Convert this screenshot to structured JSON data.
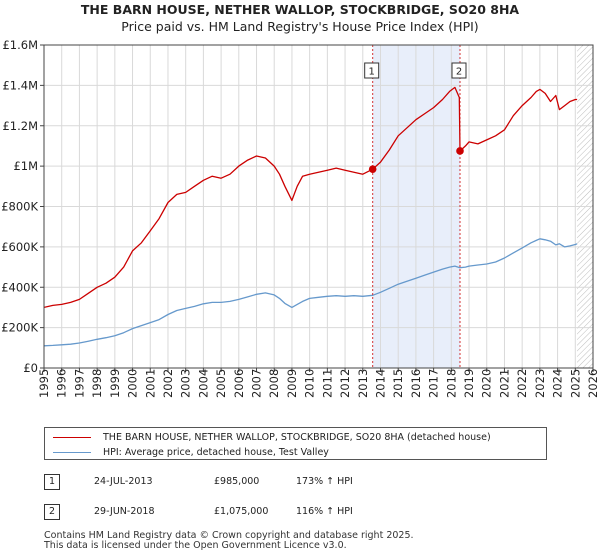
{
  "chart_data": {
    "type": "line",
    "title": "THE BARN HOUSE, NETHER WALLOP, STOCKBRIDGE, SO20 8HA",
    "subtitle": "Price paid vs. HM Land Registry's House Price Index (HPI)",
    "xlabel": "",
    "ylabel": "",
    "xlim": [
      1995,
      2026
    ],
    "ylim": [
      0,
      1600000
    ],
    "y_ticks": [
      0,
      200000,
      400000,
      600000,
      800000,
      1000000,
      1200000,
      1400000,
      1600000
    ],
    "y_tick_labels": [
      "£0",
      "£200K",
      "£400K",
      "£600K",
      "£800K",
      "£1M",
      "£1.2M",
      "£1.4M",
      "£1.6M"
    ],
    "x_ticks": [
      1995,
      1996,
      1997,
      1998,
      1999,
      2000,
      2001,
      2002,
      2003,
      2004,
      2005,
      2006,
      2007,
      2008,
      2009,
      2010,
      2011,
      2012,
      2013,
      2014,
      2015,
      2016,
      2017,
      2018,
      2019,
      2020,
      2021,
      2022,
      2023,
      2024,
      2025,
      2026
    ],
    "x_tick_labels": [
      "1995",
      "1996",
      "1997",
      "1998",
      "1999",
      "2000",
      "2001",
      "2002",
      "2003",
      "2004",
      "2005",
      "2006",
      "2007",
      "2008",
      "2009",
      "2010",
      "2011",
      "2012",
      "2013",
      "2014",
      "2015",
      "2016",
      "2017",
      "2018",
      "2019",
      "2020",
      "2021",
      "2022",
      "2023",
      "2024",
      "2025",
      "2026"
    ],
    "grid": true,
    "shaded_region": [
      2013.56,
      2018.49
    ],
    "hatched_from": 2025.1,
    "series": [
      {
        "name": "THE BARN HOUSE, NETHER WALLOP, STOCKBRIDGE, SO20 8HA (detached house)",
        "color": "#cc0000",
        "x": [
          1995.0,
          1995.5,
          1996.0,
          1996.5,
          1997.0,
          1997.5,
          1998.0,
          1998.5,
          1999.0,
          1999.5,
          2000.0,
          2000.5,
          2001.0,
          2001.5,
          2002.0,
          2002.5,
          2003.0,
          2003.5,
          2004.0,
          2004.5,
          2005.0,
          2005.5,
          2006.0,
          2006.5,
          2007.0,
          2007.5,
          2008.0,
          2008.3,
          2008.6,
          2009.0,
          2009.3,
          2009.6,
          2010.0,
          2010.5,
          2011.0,
          2011.5,
          2012.0,
          2012.5,
          2013.0,
          2013.56,
          2014.0,
          2014.5,
          2015.0,
          2015.5,
          2016.0,
          2016.5,
          2017.0,
          2017.5,
          2017.9,
          2018.2,
          2018.45,
          2018.49,
          2018.8,
          2019.0,
          2019.5,
          2020.0,
          2020.5,
          2021.0,
          2021.5,
          2022.0,
          2022.5,
          2022.8,
          2023.0,
          2023.3,
          2023.6,
          2023.9,
          2024.1,
          2024.4,
          2024.7,
          2025.0,
          2025.1
        ],
        "y": [
          300000,
          310000,
          315000,
          325000,
          340000,
          370000,
          400000,
          420000,
          450000,
          500000,
          580000,
          620000,
          680000,
          740000,
          820000,
          860000,
          870000,
          900000,
          930000,
          950000,
          940000,
          960000,
          1000000,
          1030000,
          1050000,
          1040000,
          1000000,
          960000,
          900000,
          830000,
          900000,
          950000,
          960000,
          970000,
          980000,
          990000,
          980000,
          970000,
          960000,
          985000,
          1020000,
          1080000,
          1150000,
          1190000,
          1230000,
          1260000,
          1290000,
          1330000,
          1370000,
          1390000,
          1340000,
          1075000,
          1100000,
          1120000,
          1110000,
          1130000,
          1150000,
          1180000,
          1250000,
          1300000,
          1340000,
          1370000,
          1380000,
          1360000,
          1320000,
          1350000,
          1280000,
          1300000,
          1320000,
          1330000,
          1330000
        ]
      },
      {
        "name": "HPI: Average price, detached house, Test Valley",
        "color": "#6699cc",
        "x": [
          1995.0,
          1995.5,
          1996.0,
          1996.5,
          1997.0,
          1997.5,
          1998.0,
          1998.5,
          1999.0,
          1999.5,
          2000.0,
          2000.5,
          2001.0,
          2001.5,
          2002.0,
          2002.5,
          2003.0,
          2003.5,
          2004.0,
          2004.5,
          2005.0,
          2005.5,
          2006.0,
          2006.5,
          2007.0,
          2007.5,
          2008.0,
          2008.3,
          2008.6,
          2009.0,
          2009.3,
          2009.6,
          2010.0,
          2010.5,
          2011.0,
          2011.5,
          2012.0,
          2012.5,
          2013.0,
          2013.56,
          2014.0,
          2014.5,
          2015.0,
          2015.5,
          2016.0,
          2016.5,
          2017.0,
          2017.5,
          2017.9,
          2018.2,
          2018.49,
          2018.8,
          2019.0,
          2019.5,
          2020.0,
          2020.5,
          2021.0,
          2021.5,
          2022.0,
          2022.5,
          2022.8,
          2023.0,
          2023.3,
          2023.6,
          2023.9,
          2024.1,
          2024.4,
          2024.7,
          2025.0,
          2025.1
        ],
        "y": [
          110000,
          112000,
          115000,
          118000,
          124000,
          133000,
          142000,
          150000,
          160000,
          175000,
          195000,
          210000,
          225000,
          240000,
          265000,
          285000,
          295000,
          305000,
          318000,
          325000,
          325000,
          330000,
          340000,
          352000,
          365000,
          372000,
          362000,
          345000,
          320000,
          300000,
          315000,
          330000,
          345000,
          350000,
          355000,
          358000,
          355000,
          358000,
          355000,
          360000,
          375000,
          395000,
          415000,
          430000,
          445000,
          460000,
          475000,
          490000,
          500000,
          505000,
          497000,
          500000,
          505000,
          510000,
          515000,
          525000,
          545000,
          570000,
          595000,
          620000,
          632000,
          640000,
          635000,
          628000,
          610000,
          615000,
          600000,
          605000,
          612000,
          615000
        ]
      }
    ],
    "annotations": [
      {
        "label": "1",
        "x": 2013.56,
        "y": 985000
      },
      {
        "label": "2",
        "x": 2018.49,
        "y": 1075000
      }
    ]
  },
  "legend": {
    "series_red_label": "THE BARN HOUSE, NETHER WALLOP, STOCKBRIDGE, SO20 8HA (detached house)",
    "series_blue_label": "HPI: Average price, detached house, Test Valley"
  },
  "sales": [
    {
      "num": "1",
      "date": "24-JUL-2013",
      "price": "£985,000",
      "hpi": "173% ↑ HPI"
    },
    {
      "num": "2",
      "date": "29-JUN-2018",
      "price": "£1,075,000",
      "hpi": "116% ↑ HPI"
    }
  ],
  "footer": {
    "line1": "Contains HM Land Registry data © Crown copyright and database right 2025.",
    "line2": "This data is licensed under the Open Government Licence v3.0."
  },
  "colors": {
    "red": "#cc0000",
    "blue": "#6699cc",
    "shade": "#e8eefa",
    "grid": "#d9d9d9"
  }
}
